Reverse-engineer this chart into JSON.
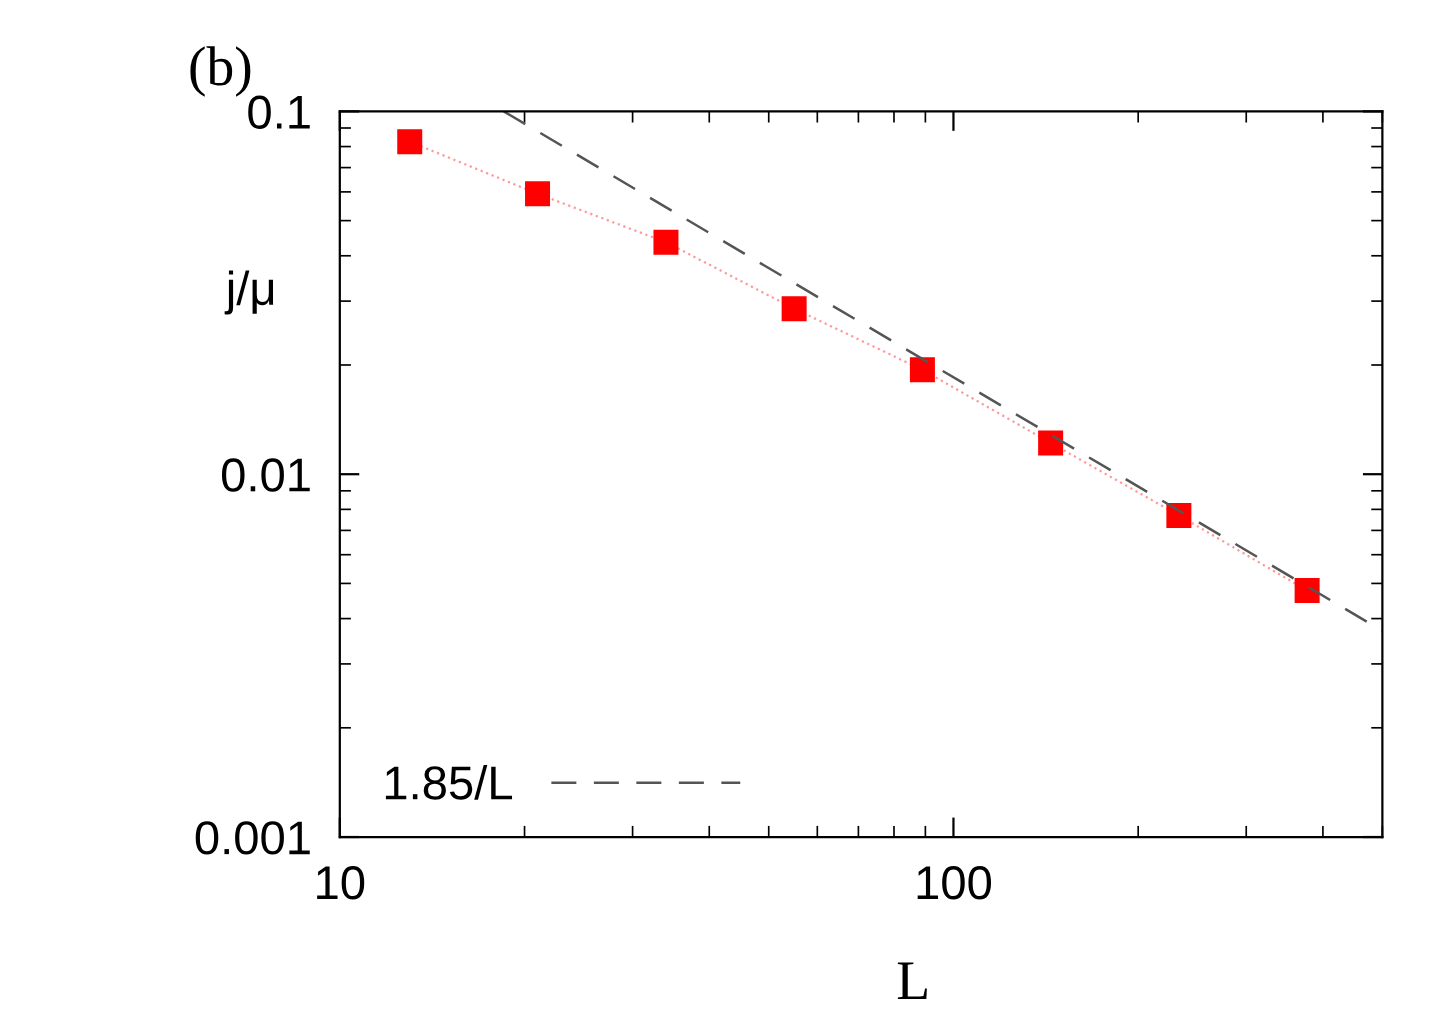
{
  "chart_data": {
    "type": "line",
    "xlabel": "L",
    "ylabel": "j/μ",
    "annotations": [
      "(b)"
    ],
    "log": "xy",
    "xlim": [
      10,
      500
    ],
    "ylim": [
      0.001,
      0.1
    ],
    "xticks": [
      10,
      100
    ],
    "yticks": [
      0.001,
      0.01,
      0.1
    ],
    "grid": false,
    "legend": "bottom left",
    "series": [
      {
        "color": "#ff0000",
        "marker": "square",
        "line_style": "dotted",
        "x": [
          13,
          21,
          34,
          55,
          89,
          144,
          233,
          377
        ],
        "values": [
          0.0825,
          0.0593,
          0.0436,
          0.0286,
          0.0194,
          0.0122,
          0.0077,
          0.00478
        ]
      },
      {
        "name": "1.85/L",
        "color": "#555555",
        "marker": "none",
        "line_style": "dashed",
        "x": [
          18.5,
          500
        ],
        "values": [
          0.1,
          0.0037
        ]
      }
    ]
  }
}
